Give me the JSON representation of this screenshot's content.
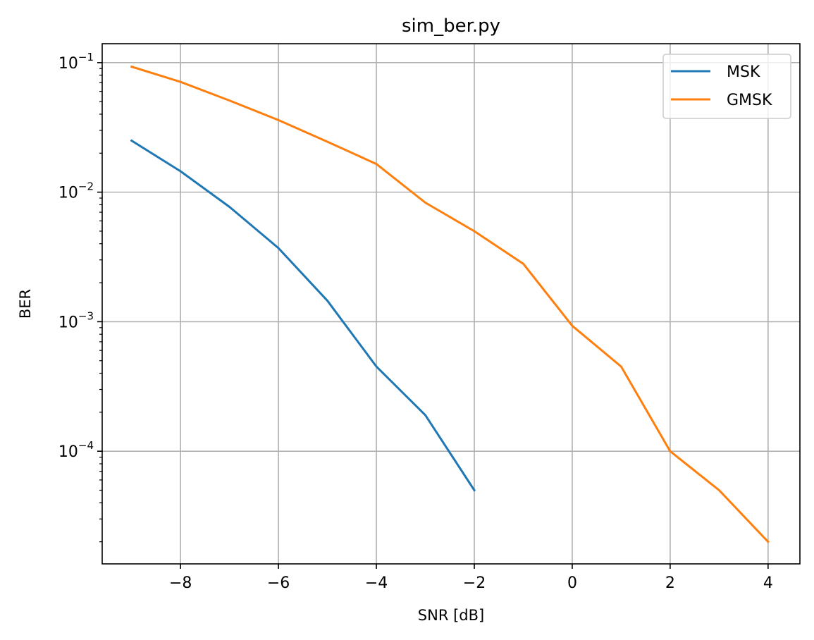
{
  "chart_data": {
    "type": "line",
    "title": "sim_ber.py",
    "xlabel": "SNR [dB]",
    "ylabel": "BER",
    "yscale": "log",
    "xlim": [
      -9.6,
      4.65
    ],
    "ylim": [
      1.35e-05,
      0.14
    ],
    "xticks": [
      "−8",
      "−6",
      "−4",
      "−2",
      "0",
      "2",
      "4"
    ],
    "yticks": [
      {
        "base": "10",
        "exp": "−1"
      },
      {
        "base": "10",
        "exp": "−2"
      },
      {
        "base": "10",
        "exp": "−3"
      },
      {
        "base": "10",
        "exp": "−4"
      }
    ],
    "grid": true,
    "legend_position": "top-right",
    "series": [
      {
        "name": "MSK",
        "color": "#1f77b4",
        "x": [
          -9,
          -8,
          -7,
          -6,
          -5,
          -4,
          -3,
          -2
        ],
        "y": [
          0.025,
          0.0145,
          0.0077,
          0.0037,
          0.00145,
          0.00045,
          0.00019,
          5e-05
        ]
      },
      {
        "name": "GMSK",
        "color": "#ff7f0e",
        "x": [
          -9,
          -8,
          -7,
          -6,
          -5,
          -4,
          -3,
          -2,
          -1,
          0,
          1,
          2,
          3,
          4
        ],
        "y": [
          0.093,
          0.071,
          0.051,
          0.036,
          0.0245,
          0.0165,
          0.0083,
          0.005,
          0.0028,
          0.00093,
          0.00045,
          0.0001,
          5e-05,
          2e-05
        ]
      }
    ]
  }
}
